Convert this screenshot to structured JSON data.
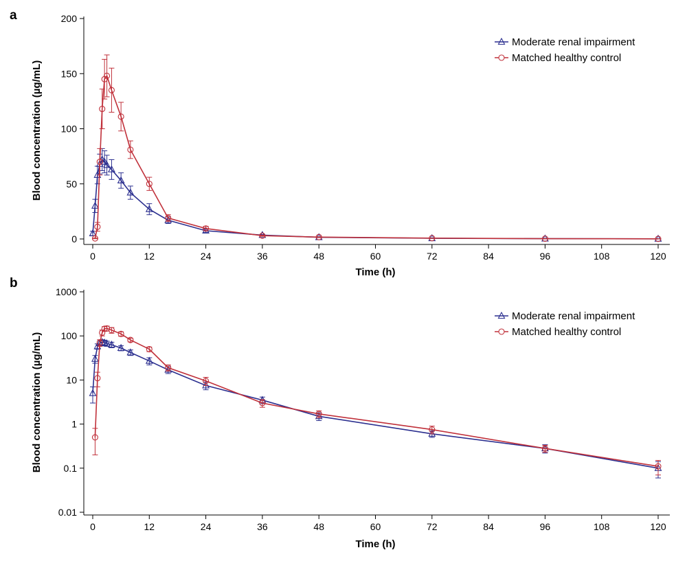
{
  "chart_data": [
    {
      "panel": "a",
      "type": "line",
      "yscale": "linear",
      "xlabel": "Time (h)",
      "ylabel": "Blood concentration (µg/mL)",
      "xlim": [
        0,
        120
      ],
      "ylim": [
        0,
        200
      ],
      "xticks": [
        0,
        12,
        24,
        36,
        48,
        60,
        72,
        84,
        96,
        108,
        120
      ],
      "yticks": [
        0,
        50,
        100,
        150,
        200
      ],
      "xtick_labels": [
        "0",
        "12",
        "24",
        "36",
        "48",
        "60",
        "72",
        "84",
        "96",
        "108",
        "120"
      ],
      "ytick_labels": [
        "0",
        "50",
        "100",
        "150",
        "200"
      ],
      "legend_position": "top-right",
      "series": [
        {
          "name": "Moderate renal impairment",
          "color": "#2b2f8f",
          "marker": "triangle",
          "x": [
            0,
            0.5,
            1,
            1.5,
            2,
            2.5,
            3,
            4,
            6,
            8,
            12,
            16,
            24,
            36,
            48,
            72,
            96,
            120
          ],
          "y": [
            5,
            30,
            58,
            68,
            72,
            70,
            67,
            63,
            53,
            42,
            27,
            17,
            7.5,
            3.5,
            1.5,
            0.6,
            0.28,
            0.1
          ],
          "err": [
            2,
            6,
            8,
            9,
            10,
            10,
            9,
            9,
            7,
            6,
            5,
            3,
            1.5,
            0.6,
            0.3,
            0.1,
            0.06,
            0.04
          ]
        },
        {
          "name": "Matched healthy control",
          "color": "#c0303a",
          "marker": "circle",
          "x": [
            0.5,
            1,
            1.5,
            2,
            2.5,
            3,
            4,
            6,
            8,
            12,
            16,
            24,
            36,
            48,
            72,
            96,
            120
          ],
          "y": [
            0.5,
            11,
            70,
            118,
            145,
            148,
            135,
            111,
            81,
            50,
            19,
            9.5,
            3,
            1.7,
            0.75,
            0.28,
            0.11
          ],
          "err": [
            0.3,
            4,
            12,
            18,
            18,
            19,
            20,
            13,
            8,
            6,
            3,
            2,
            0.6,
            0.3,
            0.15,
            0.05,
            0.04
          ]
        }
      ]
    },
    {
      "panel": "b",
      "type": "line",
      "yscale": "log",
      "xlabel": "Time (h)",
      "ylabel": "Blood concentration (µg/mL)",
      "xlim": [
        0,
        120
      ],
      "ylim": [
        0.01,
        1000
      ],
      "xticks": [
        0,
        12,
        24,
        36,
        48,
        60,
        72,
        84,
        96,
        108,
        120
      ],
      "yticks": [
        0.01,
        0.1,
        1,
        10,
        100,
        1000
      ],
      "xtick_labels": [
        "0",
        "12",
        "24",
        "36",
        "48",
        "60",
        "72",
        "84",
        "96",
        "108",
        "120"
      ],
      "ytick_labels": [
        "0.01",
        "0.1",
        "1",
        "10",
        "100",
        "1000"
      ],
      "legend_position": "top-right",
      "series": [
        {
          "name": "Moderate renal impairment",
          "color": "#2b2f8f",
          "marker": "triangle",
          "x": [
            0,
            0.5,
            1,
            1.5,
            2,
            2.5,
            3,
            4,
            6,
            8,
            12,
            16,
            24,
            36,
            48,
            72,
            96,
            120
          ],
          "y": [
            5,
            30,
            58,
            68,
            72,
            70,
            67,
            63,
            53,
            42,
            27,
            17,
            7.5,
            3.5,
            1.5,
            0.6,
            0.28,
            0.1
          ],
          "err": [
            2,
            6,
            8,
            9,
            10,
            10,
            9,
            9,
            7,
            6,
            5,
            3,
            1.5,
            0.6,
            0.3,
            0.1,
            0.06,
            0.04
          ]
        },
        {
          "name": "Matched healthy control",
          "color": "#c0303a",
          "marker": "circle",
          "x": [
            0.5,
            1,
            1.5,
            2,
            2.5,
            3,
            4,
            6,
            8,
            12,
            16,
            24,
            36,
            48,
            72,
            96,
            120
          ],
          "y": [
            0.5,
            11,
            70,
            118,
            145,
            148,
            135,
            111,
            81,
            50,
            19,
            9.5,
            3,
            1.7,
            0.75,
            0.28,
            0.11
          ],
          "err": [
            0.3,
            4,
            12,
            18,
            18,
            19,
            20,
            13,
            8,
            6,
            3,
            2,
            0.6,
            0.3,
            0.15,
            0.05,
            0.04
          ]
        }
      ]
    }
  ]
}
